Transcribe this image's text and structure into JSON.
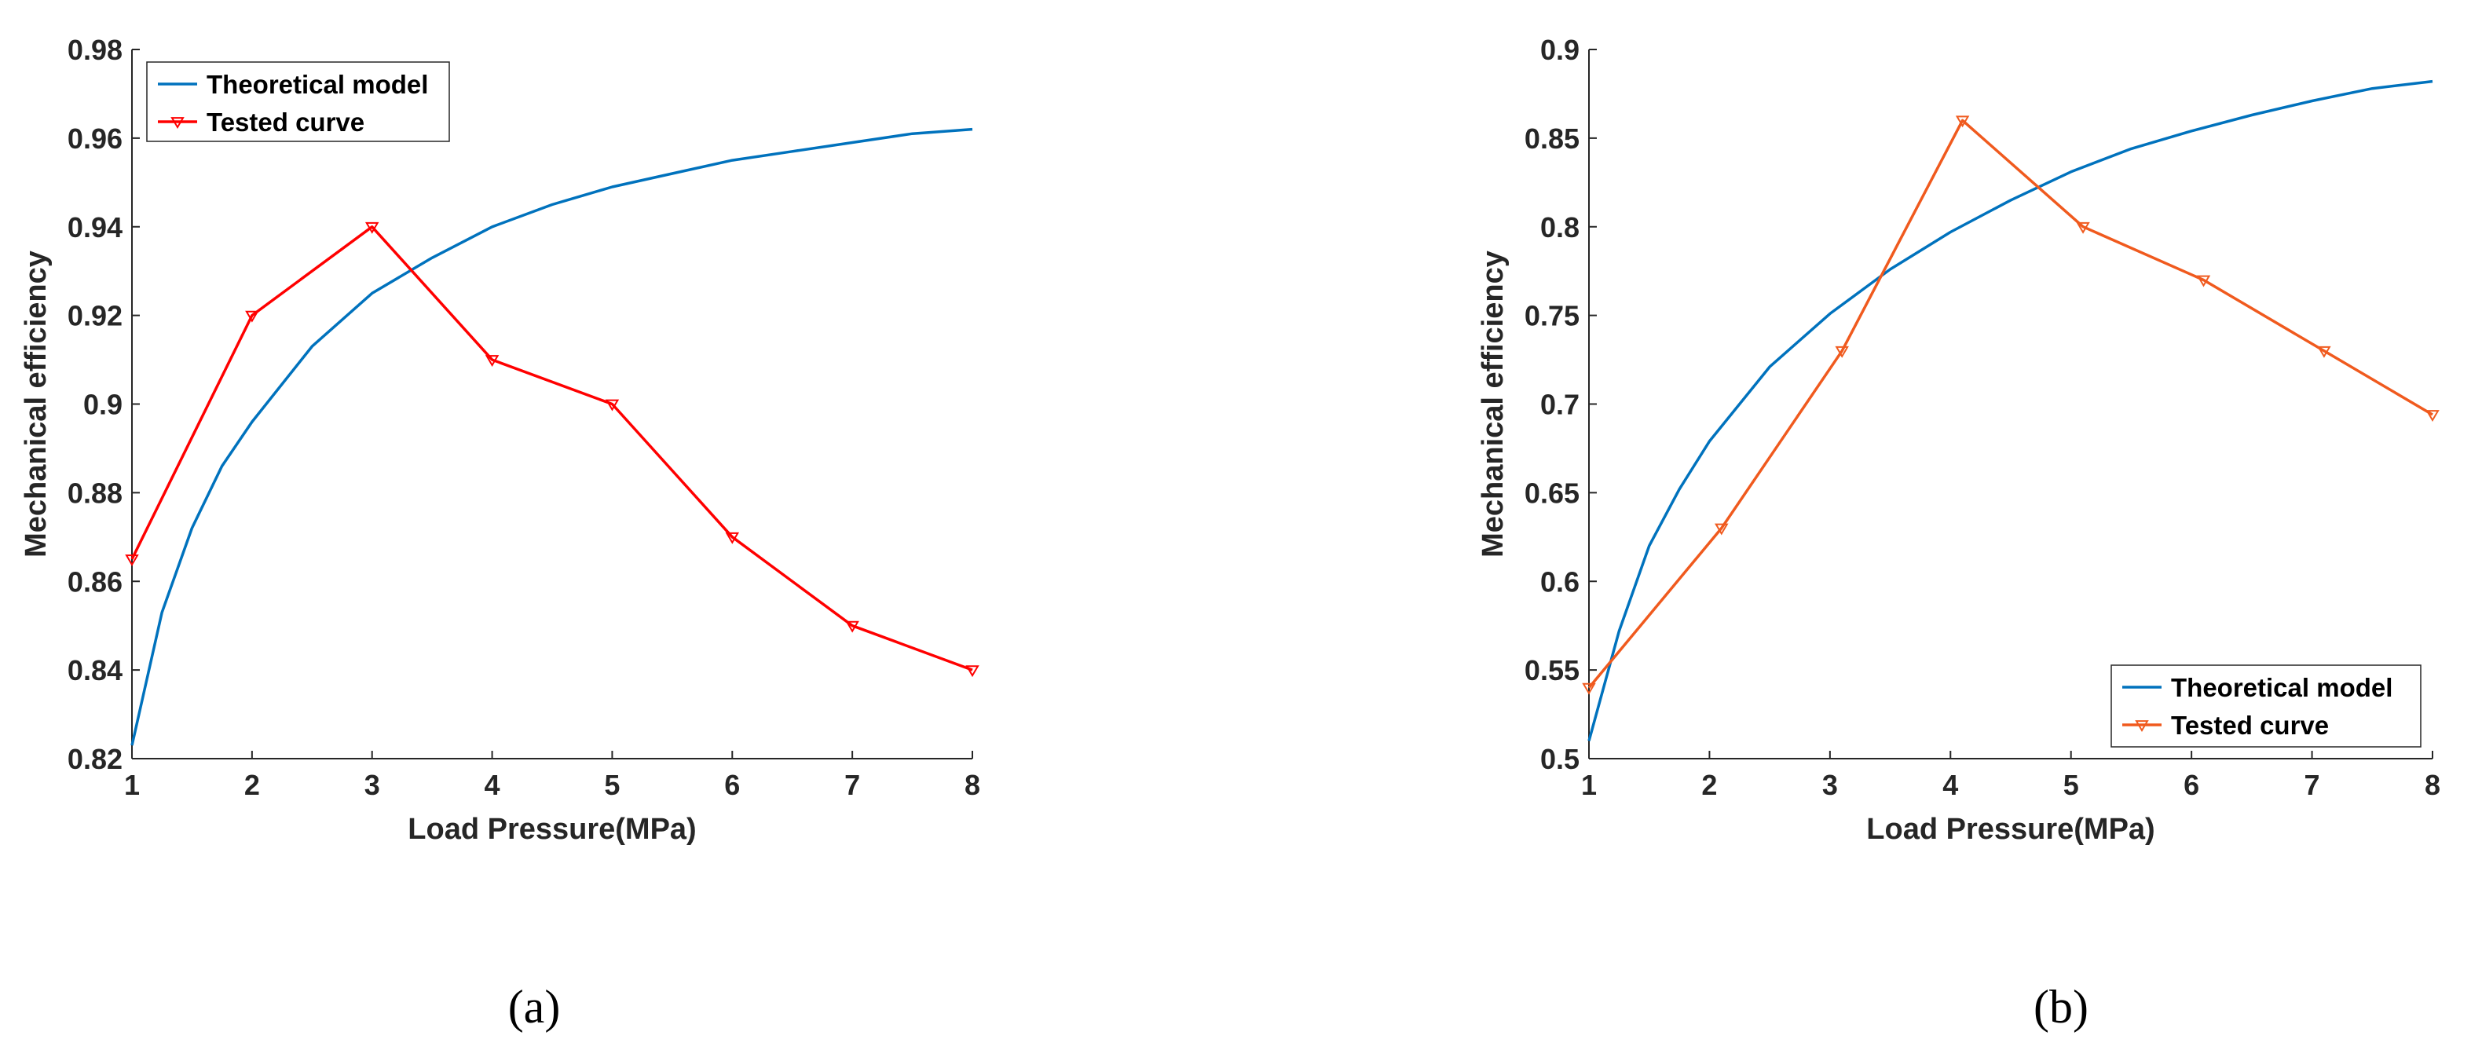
{
  "chart_data": [
    {
      "type": "line",
      "caption": "(a)",
      "xlabel": "Load Pressure(MPa)",
      "ylabel": "Mechanical efficiency",
      "xlim": [
        1,
        8
      ],
      "ylim": [
        0.82,
        0.98
      ],
      "xticks": [
        "1",
        "2",
        "3",
        "4",
        "5",
        "6",
        "7",
        "8"
      ],
      "yticks": [
        "0.82",
        "0.84",
        "0.86",
        "0.88",
        "0.9",
        "0.92",
        "0.94",
        "0.96",
        "0.98"
      ],
      "grid": false,
      "legend_position": "top-left",
      "series": [
        {
          "name": "Theoretical model",
          "color": "#0072bd",
          "marker": "none",
          "x": [
            1,
            1.25,
            1.5,
            1.75,
            2,
            2.5,
            3,
            3.5,
            4,
            4.5,
            5,
            5.5,
            6,
            6.5,
            7,
            7.5,
            8
          ],
          "y": [
            0.823,
            0.853,
            0.872,
            0.886,
            0.896,
            0.913,
            0.925,
            0.933,
            0.94,
            0.945,
            0.949,
            0.952,
            0.955,
            0.957,
            0.959,
            0.961,
            0.962
          ]
        },
        {
          "name": "Tested curve",
          "color": "#ff0000",
          "marker": "triangle-down",
          "x": [
            1,
            2,
            3,
            4,
            5,
            6,
            7,
            8
          ],
          "y": [
            0.865,
            0.92,
            0.94,
            0.91,
            0.9,
            0.87,
            0.85,
            0.84
          ]
        }
      ]
    },
    {
      "type": "line",
      "caption": "(b)",
      "xlabel": "Load Pressure(MPa)",
      "ylabel": "Mechanical efficiency",
      "xlim": [
        1,
        8
      ],
      "ylim": [
        0.5,
        0.9
      ],
      "xticks": [
        "1",
        "2",
        "3",
        "4",
        "5",
        "6",
        "7",
        "8"
      ],
      "yticks": [
        "0.5",
        "0.55",
        "0.6",
        "0.65",
        "0.7",
        "0.75",
        "0.8",
        "0.85",
        "0.9"
      ],
      "grid": false,
      "legend_position": "bottom-right",
      "series": [
        {
          "name": "Theoretical model",
          "color": "#0072bd",
          "marker": "none",
          "x": [
            1,
            1.25,
            1.5,
            1.75,
            2,
            2.5,
            3,
            3.5,
            4,
            4.5,
            5,
            5.5,
            6,
            6.5,
            7,
            7.5,
            8
          ],
          "y": [
            0.51,
            0.572,
            0.62,
            0.652,
            0.679,
            0.721,
            0.751,
            0.776,
            0.797,
            0.815,
            0.831,
            0.844,
            0.854,
            0.863,
            0.871,
            0.878,
            0.882
          ]
        },
        {
          "name": "Tested curve",
          "color": "#f05a1e",
          "marker": "triangle-down",
          "x": [
            1,
            2.1,
            3.1,
            4.1,
            5.1,
            6.1,
            7.1,
            8
          ],
          "y": [
            0.54,
            0.63,
            0.73,
            0.86,
            0.8,
            0.77,
            0.73,
            0.694
          ]
        }
      ]
    }
  ]
}
